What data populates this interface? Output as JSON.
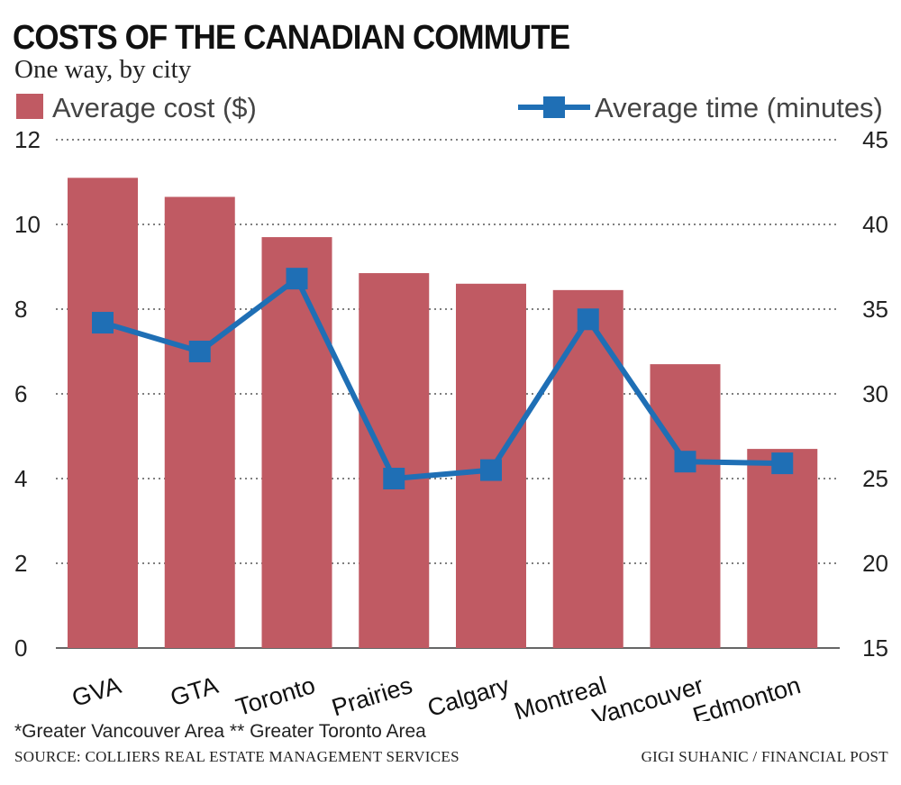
{
  "title": "COSTS OF THE CANADIAN COMMUTE",
  "subtitle": "One way, by city",
  "colors": {
    "bar": "#c05a63",
    "line": "#1f6fb5",
    "grid": "#555555"
  },
  "chart_data": {
    "type": "bar",
    "categories": [
      "GVA",
      "GTA",
      "Toronto",
      "Prairies",
      "Calgary",
      "Montreal",
      "Vancouver",
      "Edmonton"
    ],
    "series": [
      {
        "name": "Average cost ($)",
        "type": "bar",
        "axis": "left",
        "values": [
          11.1,
          10.65,
          9.7,
          8.85,
          8.6,
          8.45,
          6.7,
          4.7
        ]
      },
      {
        "name": "Average time (minutes)",
        "type": "line",
        "axis": "right",
        "marker": "square",
        "values": [
          34.2,
          32.5,
          36.8,
          25.0,
          25.5,
          34.4,
          26.0,
          25.9
        ]
      }
    ],
    "y_left": {
      "lim": [
        0,
        12
      ],
      "ticks": [
        "0",
        "2",
        "4",
        "6",
        "8",
        "10",
        "12"
      ]
    },
    "y_right": {
      "lim": [
        15,
        45
      ],
      "ticks": [
        "15",
        "20",
        "25",
        "30",
        "35",
        "40",
        "45"
      ]
    },
    "grid": "dotted horizontal",
    "legend": "top"
  },
  "footnote": "*Greater Vancouver Area  ** Greater Toronto Area",
  "source": "SOURCE: COLLIERS REAL ESTATE MANAGEMENT SERVICES",
  "credit": "GIGI SUHANIC / FINANCIAL POST"
}
